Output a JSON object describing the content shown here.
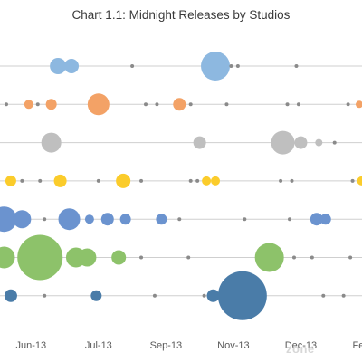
{
  "chart_data": {
    "type": "scatter",
    "title": "Chart 1.1: Midnight Releases by Studios",
    "x_tick_labels": [
      "Jun-13",
      "Jul-13",
      "Sep-13",
      "Nov-13",
      "Dec-13",
      "Feb-14"
    ],
    "x_ticks_months": [
      0,
      1.5,
      3,
      4.5,
      6,
      7.5
    ],
    "xlim_months": [
      -0.65,
      7.4
    ],
    "gridlines": "horizontal per series",
    "legend": "none",
    "series": [
      {
        "color": "#8db8e0",
        "points": [
          {
            "month": 0.6,
            "size": 9
          },
          {
            "month": 0.9,
            "size": 8
          },
          {
            "month": 2.25,
            "size": 2
          },
          {
            "month": 4.1,
            "size": 16
          },
          {
            "month": 4.45,
            "size": 2
          },
          {
            "month": 4.6,
            "size": 2
          },
          {
            "month": 5.9,
            "size": 2
          }
        ]
      },
      {
        "color": "#f3a266",
        "points": [
          {
            "month": -0.55,
            "size": 2
          },
          {
            "month": -0.05,
            "size": 5
          },
          {
            "month": 0.15,
            "size": 2
          },
          {
            "month": 0.45,
            "size": 6
          },
          {
            "month": 1.5,
            "size": 12
          },
          {
            "month": 2.55,
            "size": 2
          },
          {
            "month": 2.8,
            "size": 2
          },
          {
            "month": 3.3,
            "size": 7
          },
          {
            "month": 3.55,
            "size": 2
          },
          {
            "month": 4.35,
            "size": 2
          },
          {
            "month": 5.7,
            "size": 2
          },
          {
            "month": 5.95,
            "size": 2
          },
          {
            "month": 7.05,
            "size": 2
          },
          {
            "month": 7.3,
            "size": 4
          }
        ]
      },
      {
        "color": "#bfbfbf",
        "points": [
          {
            "month": 0.45,
            "size": 11
          },
          {
            "month": 3.75,
            "size": 7
          },
          {
            "month": 5.6,
            "size": 13
          },
          {
            "month": 6.0,
            "size": 7
          },
          {
            "month": 6.4,
            "size": 4
          },
          {
            "month": 6.75,
            "size": 2
          }
        ]
      },
      {
        "color": "#fbcc2b",
        "points": [
          {
            "month": -0.45,
            "size": 6
          },
          {
            "month": -0.2,
            "size": 2
          },
          {
            "month": 0.2,
            "size": 2
          },
          {
            "month": 0.65,
            "size": 7
          },
          {
            "month": 1.5,
            "size": 2
          },
          {
            "month": 2.05,
            "size": 8
          },
          {
            "month": 2.45,
            "size": 2
          },
          {
            "month": 3.55,
            "size": 2
          },
          {
            "month": 3.7,
            "size": 2
          },
          {
            "month": 3.9,
            "size": 5
          },
          {
            "month": 4.1,
            "size": 5
          },
          {
            "month": 5.55,
            "size": 2
          },
          {
            "month": 5.8,
            "size": 2
          },
          {
            "month": 7.15,
            "size": 2
          },
          {
            "month": 7.35,
            "size": 5
          }
        ]
      },
      {
        "color": "#6b93cf",
        "points": [
          {
            "month": -0.6,
            "size": 14
          },
          {
            "month": -0.2,
            "size": 10
          },
          {
            "month": 0.3,
            "size": 2
          },
          {
            "month": 0.85,
            "size": 12
          },
          {
            "month": 1.3,
            "size": 5
          },
          {
            "month": 1.7,
            "size": 7
          },
          {
            "month": 2.1,
            "size": 6
          },
          {
            "month": 2.9,
            "size": 6
          },
          {
            "month": 3.3,
            "size": 2
          },
          {
            "month": 4.75,
            "size": 2
          },
          {
            "month": 5.75,
            "size": 2
          },
          {
            "month": 6.35,
            "size": 7
          },
          {
            "month": 6.55,
            "size": 6
          }
        ]
      },
      {
        "color": "#8dc26a",
        "points": [
          {
            "month": -0.6,
            "size": 12
          },
          {
            "month": 0.2,
            "size": 25
          },
          {
            "month": 1.0,
            "size": 11
          },
          {
            "month": 1.25,
            "size": 10
          },
          {
            "month": 1.95,
            "size": 8
          },
          {
            "month": 2.45,
            "size": 2
          },
          {
            "month": 3.5,
            "size": 2
          },
          {
            "month": 5.3,
            "size": 16
          },
          {
            "month": 5.85,
            "size": 2
          },
          {
            "month": 6.25,
            "size": 2
          },
          {
            "month": 7.1,
            "size": 2
          }
        ]
      },
      {
        "color": "#4a7ca8",
        "points": [
          {
            "month": -0.45,
            "size": 7
          },
          {
            "month": 0.3,
            "size": 2
          },
          {
            "month": 1.45,
            "size": 6
          },
          {
            "month": 2.75,
            "size": 2
          },
          {
            "month": 3.85,
            "size": 2
          },
          {
            "month": 4.05,
            "size": 7
          },
          {
            "month": 4.7,
            "size": 27
          },
          {
            "month": 6.5,
            "size": 2
          },
          {
            "month": 6.95,
            "size": 2
          }
        ]
      }
    ]
  },
  "watermark": "zone"
}
